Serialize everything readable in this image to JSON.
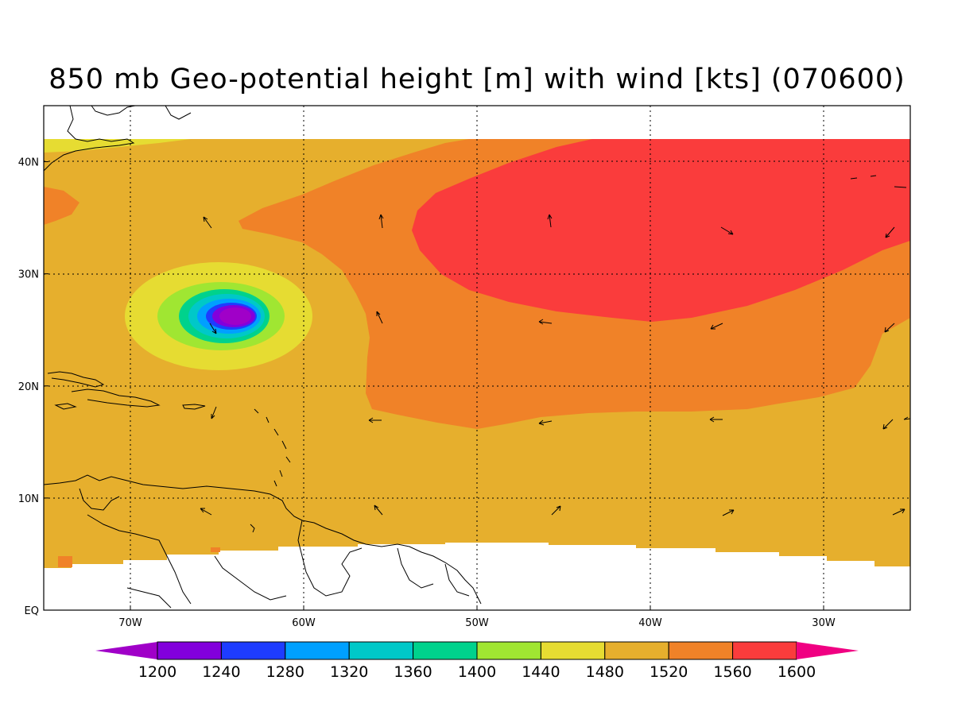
{
  "title": "850 mb Geo-potential height [m] with wind [kts] (070600)",
  "map": {
    "lon_range": [
      -75,
      -25
    ],
    "lat_range": [
      0,
      45
    ],
    "data_lat_max": 42,
    "x_ticks": [
      {
        "value": -70,
        "label": "70W"
      },
      {
        "value": -60,
        "label": "60W"
      },
      {
        "value": -50,
        "label": "50W"
      },
      {
        "value": -40,
        "label": "40W"
      },
      {
        "value": -30,
        "label": "30W"
      }
    ],
    "y_ticks": [
      {
        "value": 0,
        "label": "EQ"
      },
      {
        "value": 10,
        "label": "10N"
      },
      {
        "value": 20,
        "label": "20N"
      },
      {
        "value": 30,
        "label": "30N"
      },
      {
        "value": 40,
        "label": "40N"
      }
    ],
    "grid": true,
    "cyclone_center": {
      "lon": -64,
      "lat": 26
    }
  },
  "colorbar": {
    "levels": [
      "1200",
      "1240",
      "1280",
      "1320",
      "1360",
      "1400",
      "1440",
      "1480",
      "1520",
      "1560",
      "1600"
    ],
    "colors": [
      "#a000c8",
      "#8200dc",
      "#1e3cff",
      "#00a0ff",
      "#00c8c8",
      "#00d28c",
      "#a0e632",
      "#e6dc32",
      "#e6af2d",
      "#f08228",
      "#fa3c3c",
      "#f00082"
    ]
  },
  "fill_colors": {
    "band_1480": "#e6dc32",
    "band_1520": "#e6af2d",
    "band_1560": "#f08228",
    "band_1600": "#fa3c3c",
    "band_1440": "#a0e632",
    "band_1400": "#00d28c",
    "band_1360": "#00c8c8",
    "band_1320": "#00a0ff",
    "band_1280": "#1e3cff",
    "band_1240": "#8200dc",
    "band_1200": "#a000c8"
  }
}
